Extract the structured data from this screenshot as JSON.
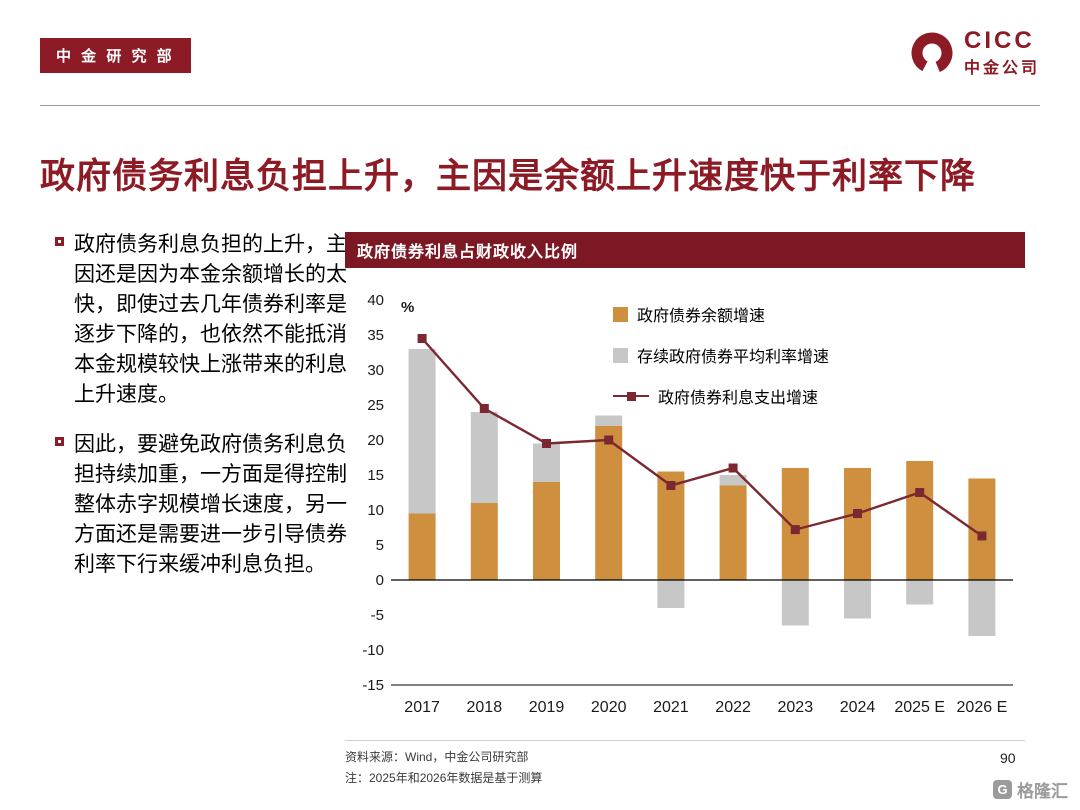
{
  "header": {
    "badge": "中 金 研 究 部",
    "logo_title": "CICC",
    "logo_subtitle": "中金公司"
  },
  "slide": {
    "title": "政府债务利息负担上升，主因是余额上升速度快于利率下降"
  },
  "bullets": [
    {
      "text": "政府债务利息负担的上升，主因还是因为本金余额增长的太快，即使过去几年债券利率是逐步下降的，也依然不能抵消本金规模较快上涨带来的利息上升速度。"
    },
    {
      "text": "因此，要避免政府债务利息负担持续加重，一方面是得控制整体赤字规模增长速度，另一方面还是需要进一步引导债券利率下行来缓冲利息负担。"
    }
  ],
  "chart": {
    "header": "政府债券利息占财政收入比例"
  },
  "chart_data": {
    "type": "bar+line",
    "title": "政府债券利息占财政收入比例",
    "categories": [
      "2017",
      "2018",
      "2019",
      "2020",
      "2021",
      "2022",
      "2023",
      "2024",
      "2025 E",
      "2026 E"
    ],
    "series": [
      {
        "name": "政府债券余额增速",
        "type": "bar",
        "stack": true,
        "color": "#CE8F3E",
        "values": [
          9.5,
          11,
          14,
          22,
          15.5,
          13.5,
          16,
          16,
          17,
          14.5
        ]
      },
      {
        "name": "存续政府债券平均利率增速",
        "type": "bar",
        "stack": true,
        "color": "#C7C7C7",
        "values": [
          23.5,
          13,
          5.5,
          1.5,
          -4,
          1.5,
          -6.5,
          -5.5,
          -3.5,
          -8
        ]
      },
      {
        "name": "政府债券利息支出增速",
        "type": "line",
        "color": "#7C2830",
        "values": [
          34.5,
          24.5,
          19.5,
          20,
          13.5,
          16,
          7.2,
          9.5,
          12.5,
          6.3
        ]
      }
    ],
    "ylabel": "%",
    "ylim": [
      -15,
      40
    ],
    "ytick_step": 5,
    "grid": false,
    "legend_position": "top-right"
  },
  "footer": {
    "source": "资料来源：Wind，中金公司研究部",
    "note": "注：2025年和2026年数据是基于测算",
    "page": "90",
    "watermark": "格隆汇"
  },
  "colors": {
    "brand_maroon": "#8C1B26",
    "chart_header_bg": "#7C1823",
    "bar_orange": "#CE8F3E",
    "bar_gray": "#C7C7C7",
    "line_dark_red": "#7C2830"
  }
}
